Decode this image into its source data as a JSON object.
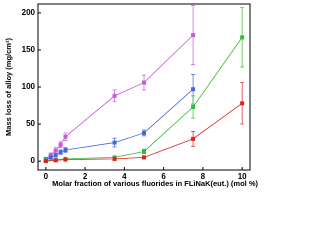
{
  "chart_data": {
    "type": "line",
    "xlabel": "Molar fraction of various fluorides in FLiNaK(eut.) (mol %)",
    "ylabel": "Mass loss of alloy (mg/cm²)",
    "xlim": [
      -0.4,
      10.4
    ],
    "xticks": [
      0,
      2,
      4,
      6,
      8,
      10
    ],
    "ylim": [
      -12,
      212
    ],
    "yticks": [
      0,
      50,
      100,
      150,
      200
    ],
    "series": [
      {
        "color": "#cc55dd",
        "x": [
          0,
          0.25,
          0.5,
          0.75,
          1,
          3.5,
          5,
          7.5
        ],
        "values": [
          3,
          8,
          14,
          22,
          33,
          88,
          106,
          170
        ],
        "errors": [
          2,
          3,
          4,
          4,
          5,
          8,
          10,
          40
        ]
      },
      {
        "color": "#4466dd",
        "x": [
          0,
          0.25,
          0.5,
          0.75,
          1,
          3.5,
          5,
          7.5
        ],
        "values": [
          2,
          5,
          8,
          12,
          15,
          25,
          38,
          97
        ],
        "errors": [
          1,
          2,
          2,
          3,
          3,
          6,
          4,
          20
        ]
      },
      {
        "color": "#33bb33",
        "x": [
          0,
          0.5,
          1,
          3.5,
          5,
          7.5,
          10
        ],
        "values": [
          1,
          2,
          3,
          5,
          13,
          73,
          167
        ],
        "errors": [
          1,
          1,
          2,
          2,
          3,
          15,
          40
        ]
      },
      {
        "color": "#dd2222",
        "x": [
          0,
          0.5,
          1,
          3.5,
          5,
          7.5,
          10
        ],
        "values": [
          0,
          1,
          2,
          3,
          5,
          30,
          78
        ],
        "errors": [
          1,
          1,
          1,
          2,
          2,
          10,
          28
        ]
      }
    ]
  }
}
